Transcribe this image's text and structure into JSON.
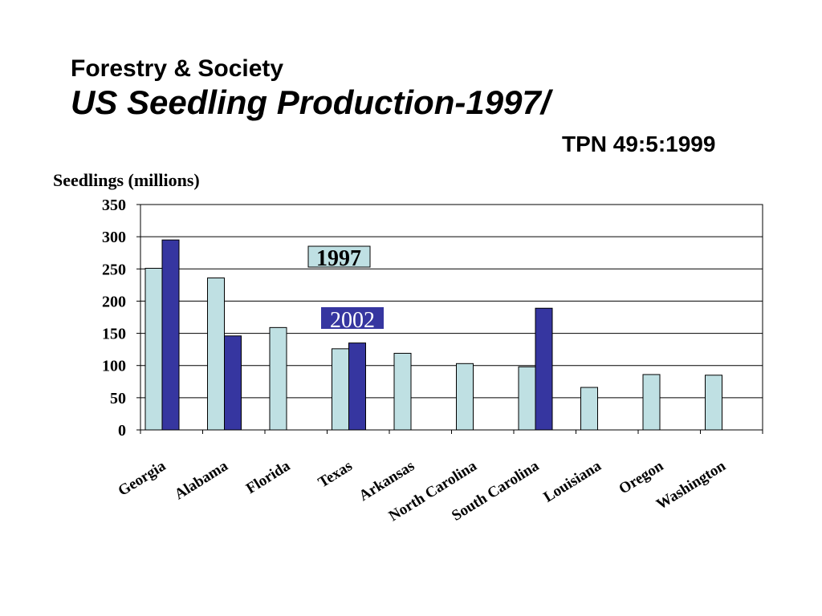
{
  "slide": {
    "subtitle": "Forestry & Society",
    "title": "US Seedling Production-1997/",
    "source": "TPN 49:5:1999"
  },
  "chart_data": {
    "type": "bar",
    "ylabel": "Seedlings (millions)",
    "xlabel": "",
    "ylim": [
      0,
      350
    ],
    "yticks": [
      0,
      50,
      100,
      150,
      200,
      250,
      300,
      350
    ],
    "grid": true,
    "categories": [
      "Georgia",
      "Alabama",
      "Florida",
      "Texas",
      "Arkansas",
      "North Carolina",
      "South Carolina",
      "Louisiana",
      "Oregon",
      "Washington"
    ],
    "series": [
      {
        "name": "1997",
        "color": "#bfe0e3",
        "values": [
          251,
          236,
          159,
          126,
          119,
          103,
          98,
          66,
          86,
          85
        ]
      },
      {
        "name": "2002",
        "color": "#3636a0",
        "values": [
          295,
          146,
          null,
          135,
          null,
          null,
          189,
          null,
          null,
          null
        ]
      }
    ]
  }
}
